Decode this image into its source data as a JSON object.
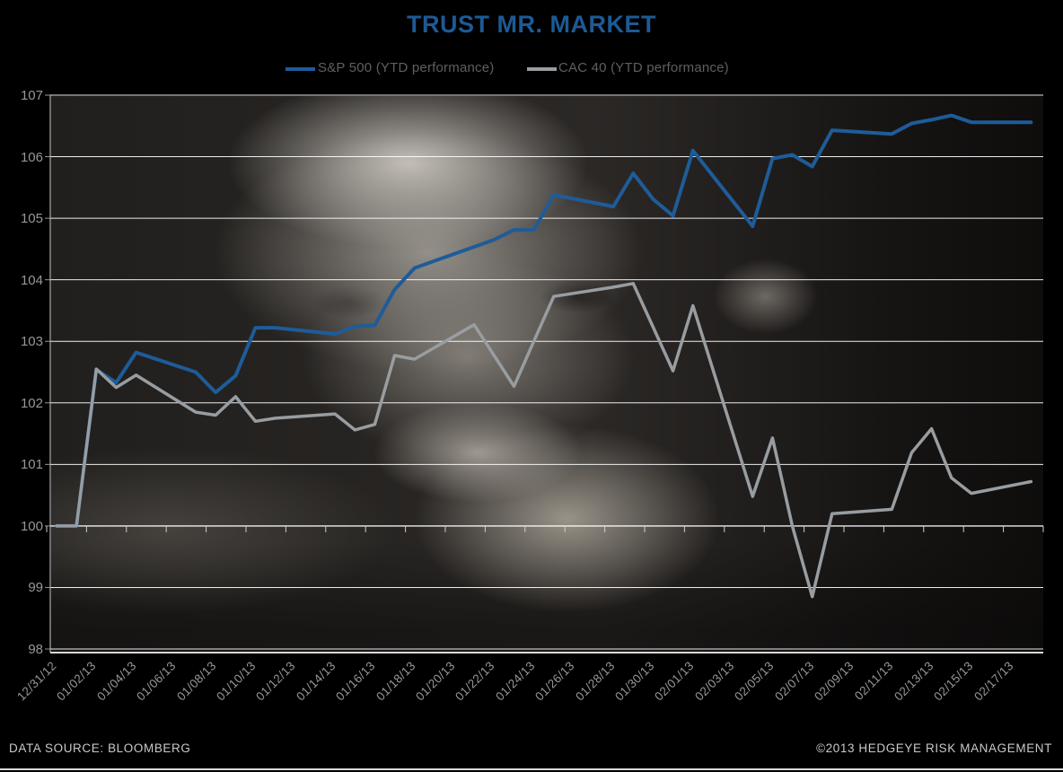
{
  "title": "TRUST MR. MARKET",
  "colors": {
    "title": "#1d5a96",
    "sp500_line": "#1e5c99",
    "cac40_line": "#989da1",
    "gridline": "#ffffff",
    "axis_line": "#d9d9d9",
    "axis_text": "#95979b",
    "legend_text": "#5f5f5f",
    "footer_text": "#c9c9c9",
    "background": "#000000"
  },
  "footer": {
    "source": "DATA SOURCE:  BLOOMBERG",
    "copyright": "©2013 HEDGEYE RISK MANAGEMENT"
  },
  "chart_data": {
    "type": "line",
    "title": "TRUST MR. MARKET",
    "legend_position": "top",
    "grid": "horizontal",
    "ylim": [
      98,
      107
    ],
    "y_ticks": [
      98,
      99,
      100,
      101,
      102,
      103,
      104,
      105,
      106,
      107
    ],
    "baseline_value": 100,
    "x_tick_interval_days": 2,
    "x_tick_labels": [
      "12/31/12",
      "01/02/13",
      "01/04/13",
      "01/06/13",
      "01/08/13",
      "01/10/13",
      "01/12/13",
      "01/14/13",
      "01/16/13",
      "01/18/13",
      "01/20/13",
      "01/22/13",
      "01/24/13",
      "01/26/13",
      "01/28/13",
      "01/30/13",
      "02/01/13",
      "02/03/13",
      "02/05/13",
      "02/07/13",
      "02/09/13",
      "02/11/13",
      "02/13/13",
      "02/15/13",
      "02/17/13"
    ],
    "series": [
      {
        "key": "sp500",
        "name": "S&P 500 (YTD performance)",
        "color": "#1e5c99",
        "stroke_width": 4,
        "points": [
          [
            "12/31/12",
            100.0
          ],
          [
            "01/01/13",
            100.0
          ],
          [
            "01/02/13",
            102.54
          ],
          [
            "01/03/13",
            102.33
          ],
          [
            "01/04/13",
            102.82
          ],
          [
            "01/07/13",
            102.5
          ],
          [
            "01/08/13",
            102.17
          ],
          [
            "01/09/13",
            102.44
          ],
          [
            "01/10/13",
            103.22
          ],
          [
            "01/11/13",
            103.22
          ],
          [
            "01/14/13",
            103.12
          ],
          [
            "01/15/13",
            103.24
          ],
          [
            "01/16/13",
            103.26
          ],
          [
            "01/17/13",
            103.84
          ],
          [
            "01/18/13",
            104.19
          ],
          [
            "01/22/13",
            104.65
          ],
          [
            "01/23/13",
            104.81
          ],
          [
            "01/24/13",
            104.81
          ],
          [
            "01/25/13",
            105.38
          ],
          [
            "01/28/13",
            105.19
          ],
          [
            "01/29/13",
            105.73
          ],
          [
            "01/30/13",
            105.31
          ],
          [
            "01/31/13",
            105.04
          ],
          [
            "02/01/13",
            106.1
          ],
          [
            "02/04/13",
            104.87
          ],
          [
            "02/05/13",
            105.97
          ],
          [
            "02/06/13",
            106.03
          ],
          [
            "02/07/13",
            105.84
          ],
          [
            "02/08/13",
            106.43
          ],
          [
            "02/11/13",
            106.37
          ],
          [
            "02/12/13",
            106.54
          ],
          [
            "02/13/13",
            106.6
          ],
          [
            "02/14/13",
            106.67
          ],
          [
            "02/15/13",
            106.56
          ],
          [
            "02/18/13",
            106.56
          ]
        ]
      },
      {
        "key": "cac40",
        "name": "CAC 40 (YTD performance)",
        "color": "#989da1",
        "stroke_width": 3.5,
        "points": [
          [
            "12/31/12",
            100.0
          ],
          [
            "01/01/13",
            100.0
          ],
          [
            "01/02/13",
            102.55
          ],
          [
            "01/03/13",
            102.25
          ],
          [
            "01/04/13",
            102.45
          ],
          [
            "01/07/13",
            101.85
          ],
          [
            "01/08/13",
            101.8
          ],
          [
            "01/09/13",
            102.1
          ],
          [
            "01/10/13",
            101.7
          ],
          [
            "01/11/13",
            101.75
          ],
          [
            "01/14/13",
            101.82
          ],
          [
            "01/15/13",
            101.56
          ],
          [
            "01/16/13",
            101.65
          ],
          [
            "01/17/13",
            102.77
          ],
          [
            "01/18/13",
            102.71
          ],
          [
            "01/21/13",
            103.27
          ],
          [
            "01/22/13",
            102.77
          ],
          [
            "01/23/13",
            102.27
          ],
          [
            "01/24/13",
            103.0
          ],
          [
            "01/25/13",
            103.73
          ],
          [
            "01/28/13",
            103.88
          ],
          [
            "01/29/13",
            103.94
          ],
          [
            "01/30/13",
            103.23
          ],
          [
            "01/31/13",
            102.52
          ],
          [
            "02/01/13",
            103.58
          ],
          [
            "02/04/13",
            100.48
          ],
          [
            "02/05/13",
            101.43
          ],
          [
            "02/06/13",
            100.0
          ],
          [
            "02/07/13",
            98.85
          ],
          [
            "02/08/13",
            100.2
          ],
          [
            "02/11/13",
            100.27
          ],
          [
            "02/12/13",
            101.19
          ],
          [
            "02/13/13",
            101.58
          ],
          [
            "02/14/13",
            100.78
          ],
          [
            "02/15/13",
            100.53
          ],
          [
            "02/18/13",
            100.72
          ]
        ]
      }
    ]
  }
}
